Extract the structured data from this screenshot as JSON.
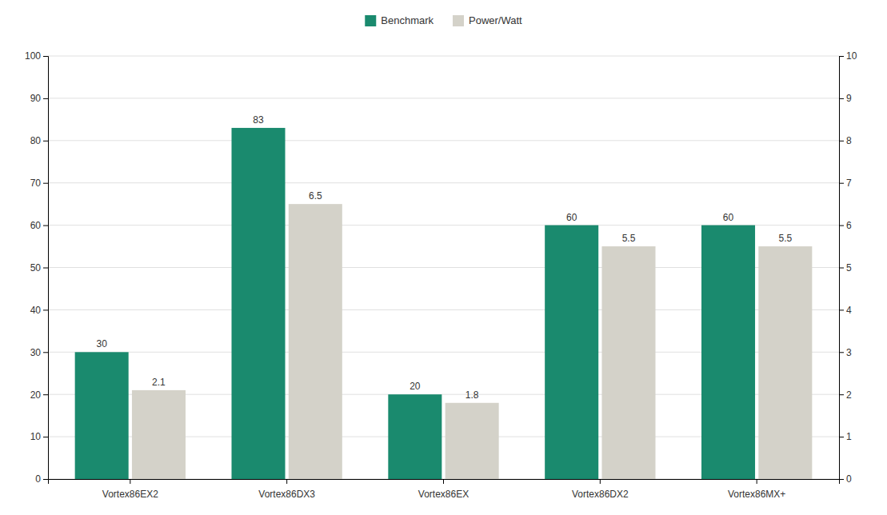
{
  "chart_data": {
    "type": "bar",
    "categories": [
      "Vortex86EX2",
      "Vortex86DX3",
      "Vortex86EX",
      "Vortex86DX2",
      "Vortex86MX+"
    ],
    "series": [
      {
        "name": "Benchmark",
        "color": "#1a8a6e",
        "values": [
          30,
          83,
          20,
          60,
          60
        ]
      },
      {
        "name": "Power/Watt",
        "color": "#d4d2c9",
        "values": [
          2.1,
          6.5,
          1.8,
          5.5,
          5.5
        ],
        "axis": "y2"
      }
    ],
    "ylim": [
      0,
      100
    ],
    "yticks": [
      0,
      10,
      20,
      30,
      40,
      50,
      60,
      70,
      80,
      90,
      100
    ],
    "y2lim": [
      0,
      10
    ],
    "y2ticks": [
      0,
      1,
      2,
      3,
      4,
      5,
      6,
      7,
      8,
      9,
      10
    ],
    "grid": true,
    "legend": "top",
    "data_labels": true
  }
}
